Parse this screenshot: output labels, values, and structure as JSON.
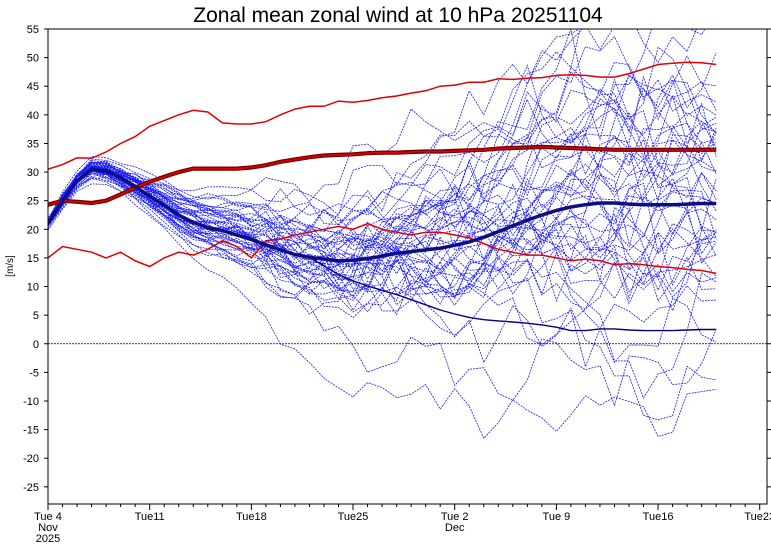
{
  "chart_data": {
    "type": "line",
    "title": "Zonal mean zonal wind at 10 hPa 20251104",
    "ylabel": "[m/s]",
    "xlabel": "",
    "ylim": [
      -28,
      55
    ],
    "yticks": [
      -25,
      -20,
      -15,
      -10,
      -5,
      0,
      5,
      10,
      15,
      20,
      25,
      30,
      35,
      40,
      45,
      50,
      55
    ],
    "xlim_days": [
      0,
      49.5
    ],
    "x_units": "days after Tue 4 Nov 2025",
    "x_ticks": [
      {
        "day": 0,
        "lines": [
          "Tue 4",
          "Nov",
          "2025"
        ]
      },
      {
        "day": 7,
        "lines": [
          "Tue11"
        ]
      },
      {
        "day": 14,
        "lines": [
          "Tue18"
        ]
      },
      {
        "day": 21,
        "lines": [
          "Tue25"
        ]
      },
      {
        "day": 28,
        "lines": [
          "Tue 2",
          "Dec"
        ]
      },
      {
        "day": 35,
        "lines": [
          "Tue 9"
        ]
      },
      {
        "day": 42,
        "lines": [
          "Tue16"
        ]
      },
      {
        "day": 49,
        "lines": [
          "Tue23"
        ]
      }
    ],
    "zero_line": true,
    "colors": {
      "ensemble": "#1a1aff",
      "climatology": "#e00000",
      "climatology_edge": "#700000",
      "mean": "#0d0d80",
      "control": "#000080"
    },
    "ensemble_members": 51,
    "series": [
      {
        "role": "climatology_upper",
        "x": [
          0,
          1,
          2,
          3,
          4,
          5,
          6,
          7,
          8,
          9,
          10,
          11,
          12,
          13,
          14,
          15,
          16,
          17,
          18,
          19,
          20,
          21,
          22,
          23,
          24,
          25,
          26,
          27,
          28,
          29,
          30,
          31,
          32,
          33,
          34,
          35,
          36,
          37,
          38,
          39,
          40,
          41,
          42,
          43,
          44,
          45,
          46
        ],
        "y": [
          30.5,
          31.3,
          32.5,
          32.4,
          33.5,
          35,
          36.2,
          38,
          39,
          40,
          40.8,
          40.5,
          38.6,
          38.4,
          38.4,
          38.8,
          40,
          41,
          41.5,
          41.5,
          42.4,
          42.2,
          42.5,
          43,
          43.3,
          43.8,
          44.2,
          45,
          45.2,
          45.7,
          45.7,
          46.3,
          46.2,
          46.4,
          46.5,
          46.9,
          47,
          46.9,
          46.6,
          46.6,
          47.2,
          48,
          48.8,
          49,
          49.2,
          49.1,
          48.8
        ]
      },
      {
        "role": "climatology_mean",
        "x": [
          0,
          1,
          2,
          3,
          4,
          5,
          6,
          7,
          8,
          9,
          10,
          11,
          12,
          13,
          14,
          15,
          16,
          17,
          18,
          19,
          20,
          21,
          22,
          23,
          24,
          25,
          26,
          27,
          28,
          29,
          30,
          31,
          32,
          33,
          34,
          35,
          36,
          37,
          38,
          39,
          40,
          41,
          42,
          43,
          44,
          45,
          46
        ],
        "y": [
          24.3,
          25,
          24.8,
          24.6,
          25,
          26.1,
          27.3,
          28.3,
          29.2,
          30,
          30.6,
          30.6,
          30.6,
          30.6,
          30.8,
          31.2,
          31.8,
          32.2,
          32.6,
          32.9,
          33,
          33.1,
          33.3,
          33.4,
          33.4,
          33.5,
          33.6,
          33.6,
          33.7,
          33.8,
          33.9,
          34.1,
          34.2,
          34.3,
          34.4,
          34.3,
          34.2,
          34.1,
          34,
          33.9,
          33.9,
          33.9,
          33.9,
          33.9,
          33.9,
          33.9,
          33.9
        ]
      },
      {
        "role": "climatology_lower",
        "x": [
          0,
          1,
          2,
          3,
          4,
          5,
          6,
          7,
          8,
          9,
          10,
          11,
          12,
          13,
          14,
          15,
          16,
          17,
          18,
          19,
          20,
          21,
          22,
          23,
          24,
          25,
          26,
          27,
          28,
          29,
          30,
          31,
          32,
          33,
          34,
          35,
          36,
          37,
          38,
          39,
          40,
          41,
          42,
          43,
          44,
          45,
          46
        ],
        "y": [
          15,
          17,
          16.5,
          16,
          15,
          16,
          14.5,
          13.5,
          15,
          16,
          15.5,
          16.5,
          18,
          17,
          15,
          18,
          18.3,
          19,
          19.5,
          20,
          20.5,
          20,
          21,
          20,
          19.5,
          19,
          19.5,
          19.5,
          19,
          18.5,
          17.5,
          16.5,
          16,
          15.5,
          15.5,
          15,
          14.5,
          14.8,
          14.5,
          13.8,
          14,
          13.8,
          13.5,
          13.3,
          13,
          12.8,
          12.3
        ]
      },
      {
        "role": "ensemble_mean",
        "x": [
          0,
          1,
          2,
          3,
          4,
          5,
          6,
          7,
          8,
          9,
          10,
          11,
          12,
          13,
          14,
          15,
          16,
          17,
          18,
          19,
          20,
          21,
          22,
          23,
          24,
          25,
          26,
          27,
          28,
          29,
          30,
          31,
          32,
          33,
          34,
          35,
          36,
          37,
          38,
          39,
          40,
          41,
          42,
          43,
          44,
          45,
          46
        ],
        "y": [
          21,
          25,
          28.5,
          30.5,
          30.2,
          29,
          27.5,
          25.8,
          24.2,
          22.5,
          21.2,
          20.3,
          19.8,
          19,
          18.2,
          17.3,
          16.4,
          15.6,
          15.1,
          14.8,
          14.5,
          14.6,
          14.9,
          15.3,
          15.8,
          16.1,
          16.4,
          16.7,
          17.2,
          17.8,
          18.6,
          19.6,
          20.6,
          21.6,
          22.5,
          23.3,
          23.9,
          24.3,
          24.6,
          24.6,
          24.4,
          24.3,
          24.3,
          24.3,
          24.4,
          24.5,
          24.5
        ]
      }
    ]
  }
}
